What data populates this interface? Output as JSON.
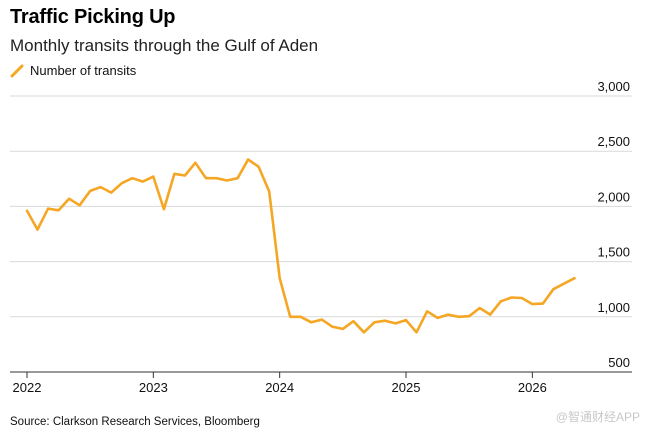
{
  "header": {
    "title": "Traffic Picking Up",
    "subtitle": "Monthly transits through the Gulf of Aden"
  },
  "footer": {
    "source": "Source: Clarkson Research Services, Bloomberg",
    "watermark": "@智通财经APP"
  },
  "colors": {
    "line": "#f5a623",
    "grid": "#d9d9d9",
    "axis": "#333333"
  },
  "chart_data": {
    "type": "line",
    "legend": {
      "entries": [
        "Number of transits"
      ],
      "position": "top-left"
    },
    "xlim": [
      2022,
      2026.4167
    ],
    "ylim": [
      500,
      3000
    ],
    "yticks": [
      3000,
      2500,
      2000,
      1500,
      1000,
      500
    ],
    "ytick_labels": [
      "3,000",
      "2,500",
      "2,000",
      "1,500",
      "1,000",
      "500"
    ],
    "xticks": [
      2022,
      2023,
      2024,
      2025,
      2026
    ],
    "xtick_labels": [
      "2022",
      "2023",
      "2024",
      "2025",
      "2026"
    ],
    "grid": true,
    "series": [
      {
        "name": "Number of transits",
        "x": [
          2022.0,
          2022.0833,
          2022.1667,
          2022.25,
          2022.3333,
          2022.4167,
          2022.5,
          2022.5833,
          2022.6667,
          2022.75,
          2022.8333,
          2022.9167,
          2023.0,
          2023.0833,
          2023.1667,
          2023.25,
          2023.3333,
          2023.4167,
          2023.5,
          2023.5833,
          2023.6667,
          2023.75,
          2023.8333,
          2023.9167,
          2024.0,
          2024.0833,
          2024.1667,
          2024.25,
          2024.3333,
          2024.4167,
          2024.5,
          2024.5833,
          2024.6667,
          2024.75,
          2024.8333,
          2024.9167,
          2025.0,
          2025.0833,
          2025.1667,
          2025.25,
          2025.3333,
          2025.4167,
          2025.5,
          2025.5833,
          2025.6667,
          2025.75,
          2025.8333,
          2025.9167,
          2026.0,
          2026.0833,
          2026.1667,
          2026.25,
          2026.3333
        ],
        "values": [
          1960,
          1790,
          1980,
          1965,
          2070,
          2010,
          2140,
          2175,
          2125,
          2210,
          2255,
          2225,
          2270,
          1975,
          2295,
          2280,
          2395,
          2255,
          2255,
          2235,
          2255,
          2425,
          2360,
          2135,
          1350,
          1000,
          1000,
          950,
          975,
          910,
          890,
          960,
          860,
          950,
          965,
          940,
          970,
          860,
          1050,
          990,
          1020,
          1000,
          1005,
          1080,
          1020,
          1140,
          1175,
          1170,
          1115,
          1120,
          1250,
          1300,
          1350
        ]
      }
    ]
  }
}
